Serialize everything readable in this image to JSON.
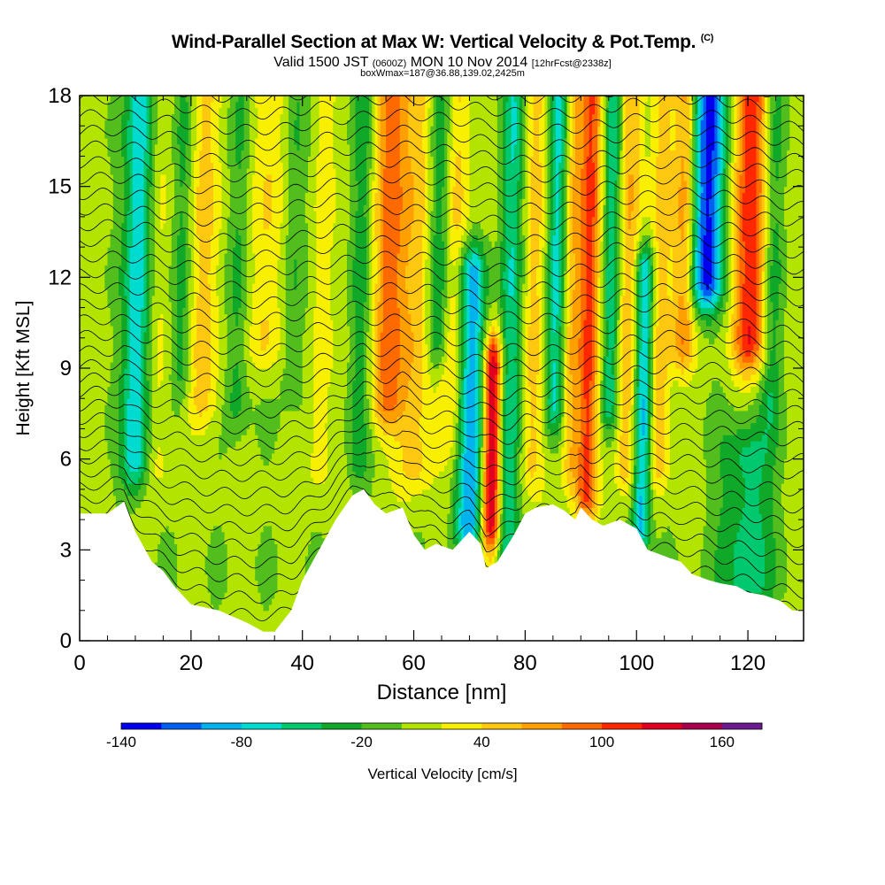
{
  "header": {
    "title": "Wind-Parallel Section at Max W: Vertical Velocity & Pot.Temp.",
    "copyright": "(C)",
    "valid_a": "Valid 1500 JST",
    "valid_z": "(0600Z)",
    "valid_b": "MON 10 Nov 2014",
    "fcst": "[12hrFcst@2338z]",
    "boxinfo": "boxWmax=187@36.88,139.02,2425m"
  },
  "colorbar": {
    "label": "Vertical Velocity [cm/s]",
    "tick_labels": [
      "-140",
      "-80",
      "-20",
      "40",
      "100",
      "160"
    ],
    "tick_values": [
      -140,
      -80,
      -20,
      40,
      100,
      160
    ],
    "levels": [
      -140,
      -120,
      -100,
      -80,
      -60,
      -40,
      -20,
      0,
      20,
      40,
      60,
      80,
      100,
      120,
      140,
      160,
      180
    ],
    "colors": [
      "#0000ee",
      "#005ff0",
      "#00b2ee",
      "#00dbd0",
      "#00c86e",
      "#10a828",
      "#52be1e",
      "#b2e400",
      "#f8f000",
      "#ffc810",
      "#ffa000",
      "#ff6a00",
      "#ff2800",
      "#e00020",
      "#a8004c",
      "#6a1a8e"
    ]
  },
  "chart_data": {
    "type": "heatmap",
    "title": "Wind-Parallel Section at Max W: Vertical Velocity & Pot.Temp.",
    "xlabel": "Distance [nm]",
    "ylabel": "Height [Kft MSL]",
    "xlim": [
      0,
      130
    ],
    "ylim": [
      0,
      18
    ],
    "x_ticks": [
      0,
      20,
      40,
      60,
      80,
      100,
      120
    ],
    "y_ticks": [
      0,
      3,
      6,
      9,
      12,
      15,
      18
    ],
    "z_name": "Vertical Velocity",
    "z_units": "cm/s",
    "terrain_kft": {
      "x": [
        0,
        5,
        8,
        10,
        13,
        15,
        17,
        20,
        25,
        30,
        33,
        35,
        38,
        40,
        43,
        46,
        49,
        51,
        53,
        55,
        58,
        60,
        62,
        64,
        67,
        70,
        72,
        73,
        75,
        78,
        80,
        82,
        85,
        87,
        89,
        90,
        92,
        94,
        97,
        100,
        102,
        105,
        108,
        110,
        113,
        115,
        118,
        120,
        123,
        126,
        128,
        130
      ],
      "y": [
        4.2,
        4.2,
        4.6,
        3.6,
        2.6,
        2.3,
        1.8,
        1.2,
        1.0,
        0.6,
        0.3,
        0.3,
        1.0,
        2.0,
        3.0,
        4.0,
        4.8,
        5.0,
        4.5,
        4.2,
        4.4,
        3.5,
        3.0,
        3.2,
        3.0,
        3.6,
        3.2,
        2.4,
        2.6,
        3.5,
        4.2,
        4.4,
        4.5,
        4.3,
        4.0,
        4.4,
        4.0,
        3.8,
        4.0,
        3.7,
        3.0,
        2.8,
        2.6,
        2.2,
        2.0,
        1.9,
        1.8,
        1.6,
        1.5,
        1.3,
        1.0,
        1.0
      ]
    },
    "w_bands": [
      {
        "x": 10,
        "w": 2.5,
        "amp": -85,
        "zlo": 6,
        "zhi": 18
      },
      {
        "x": 14,
        "w": 2.5,
        "amp": 25,
        "zlo": 6,
        "zhi": 18
      },
      {
        "x": 18,
        "w": 2,
        "amp": -40,
        "zlo": 9,
        "zhi": 18
      },
      {
        "x": 22,
        "w": 3,
        "amp": 45,
        "zlo": 8,
        "zhi": 18
      },
      {
        "x": 28,
        "w": 2,
        "amp": -35,
        "zlo": 8,
        "zhi": 18
      },
      {
        "x": 33,
        "w": 3,
        "amp": 40,
        "zlo": 10,
        "zhi": 18
      },
      {
        "x": 38,
        "w": 2,
        "amp": -30,
        "zlo": 9,
        "zhi": 18
      },
      {
        "x": 43,
        "w": 2,
        "amp": 30,
        "zlo": 6,
        "zhi": 18
      },
      {
        "x": 50,
        "w": 2,
        "amp": -35,
        "zlo": 6,
        "zhi": 18
      },
      {
        "x": 55,
        "w": 3,
        "amp": 80,
        "zlo": 8,
        "zhi": 18
      },
      {
        "x": 60,
        "w": 3,
        "amp": 50,
        "zlo": 6,
        "zhi": 18
      },
      {
        "x": 64,
        "w": 2,
        "amp": -60,
        "zlo": 10,
        "zhi": 18
      },
      {
        "x": 67,
        "w": 2.5,
        "amp": 45,
        "zlo": 7,
        "zhi": 18
      },
      {
        "x": 70,
        "w": 2.5,
        "amp": -100,
        "zlo": 4,
        "zhi": 12
      },
      {
        "x": 74,
        "w": 1.6,
        "amp": 140,
        "zlo": 4,
        "zhi": 9
      },
      {
        "x": 77,
        "w": 2,
        "amp": -60,
        "zlo": 3,
        "zhi": 18
      },
      {
        "x": 81,
        "w": 2,
        "amp": 40,
        "zlo": 6,
        "zhi": 18
      },
      {
        "x": 85,
        "w": 1.6,
        "amp": -70,
        "zlo": 8,
        "zhi": 18
      },
      {
        "x": 88,
        "w": 1.5,
        "amp": 50,
        "zlo": 6,
        "zhi": 18
      },
      {
        "x": 91,
        "w": 2,
        "amp": 95,
        "zlo": 5,
        "zhi": 18
      },
      {
        "x": 95,
        "w": 1.6,
        "amp": -60,
        "zlo": 8,
        "zhi": 18
      },
      {
        "x": 98,
        "w": 2,
        "amp": 55,
        "zlo": 6,
        "zhi": 18
      },
      {
        "x": 101,
        "w": 1.6,
        "amp": -100,
        "zlo": 4,
        "zhi": 12
      },
      {
        "x": 104,
        "w": 2,
        "amp": 50,
        "zlo": 6,
        "zhi": 18
      },
      {
        "x": 108,
        "w": 2,
        "amp": 70,
        "zlo": 10,
        "zhi": 18
      },
      {
        "x": 112,
        "w": 3,
        "amp": -130,
        "zlo": 12,
        "zhi": 18
      },
      {
        "x": 120,
        "w": 3,
        "amp": 110,
        "zlo": 10,
        "zhi": 18
      },
      {
        "x": 124,
        "w": 2,
        "amp": -40,
        "zlo": 8,
        "zhi": 18
      },
      {
        "x": 120,
        "w": 5,
        "amp": -55,
        "zlo": 2,
        "zhi": 6
      }
    ],
    "theta_label": "Pot.Temp."
  }
}
